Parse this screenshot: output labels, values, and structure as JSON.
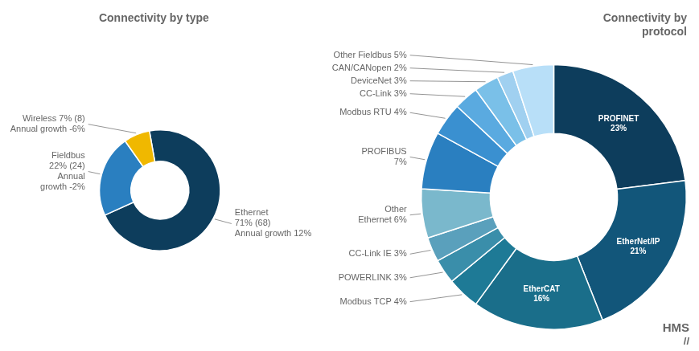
{
  "chart_data": [
    {
      "type": "doughnut",
      "title": "Connectivity by type",
      "categories": [
        "Ethernet\n71% (68)\nAnnual growth 12%",
        "Fieldbus\n22% (24)\nAnnual\ngrowth -2%",
        "Wireless 7% (8)\nAnnual growth -6%"
      ],
      "values": [
        71,
        22,
        7
      ],
      "colors": [
        "#0d3d5c",
        "#2a7fc0",
        "#f0b800"
      ]
    },
    {
      "type": "doughnut",
      "title": "Connectivity by\nprotocol",
      "categories": [
        "PROFINET\n23%",
        "EtherNet/IP\n21%",
        "EtherCAT\n16%",
        "Modbus TCP 4%",
        "POWERLINK 3%",
        "CC-Link IE 3%",
        "Other\nEthernet 6%",
        "PROFIBUS\n7%",
        "Modbus RTU 4%",
        "CC-Link 3%",
        "DeviceNet 3%",
        "CAN/CANopen 2%",
        "Other Fieldbus 5%"
      ],
      "values": [
        23,
        21,
        16,
        4,
        3,
        3,
        6,
        7,
        4,
        3,
        3,
        2,
        5
      ],
      "colors": [
        "#0d3d5c",
        "#12567a",
        "#1a6e8a",
        "#1e7a96",
        "#3a8eaa",
        "#5aa0bc",
        "#7ab8cc",
        "#2a7fc0",
        "#3a90d0",
        "#5aaae0",
        "#7ac0e8",
        "#a0d0f0",
        "#b8dff8"
      ],
      "annotations": [
        "HMS",
        "//"
      ]
    }
  ]
}
